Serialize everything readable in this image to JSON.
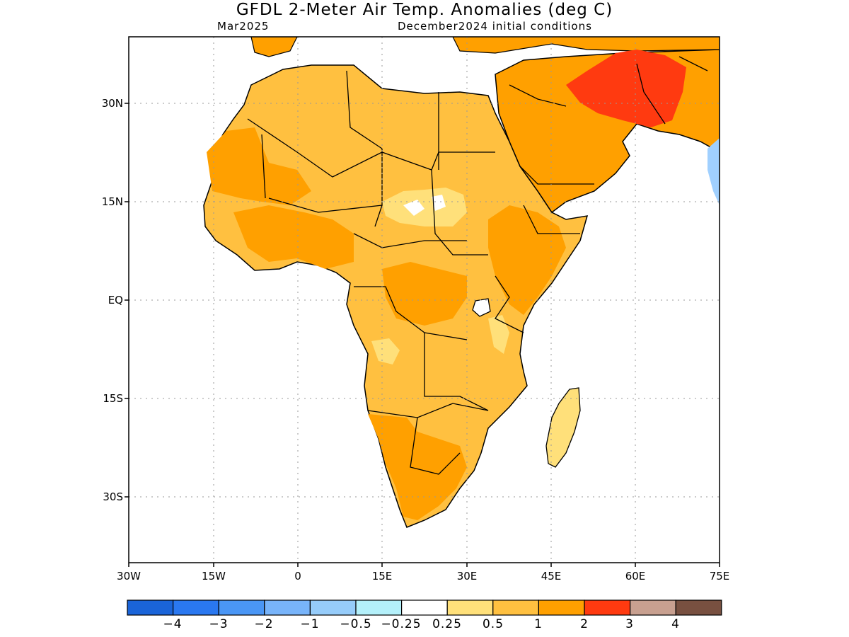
{
  "title": "GFDL 2-Meter Air Temp. Anomalies (deg C)",
  "subtitle_left": "Mar2025",
  "subtitle_right": "December2024 initial conditions",
  "map": {
    "region_lon": [
      "30W",
      "75E"
    ],
    "region_lat": [
      "40S",
      "40N"
    ],
    "lat_labels": [
      "30N",
      "15N",
      "EQ",
      "15S",
      "30S"
    ],
    "lon_labels": [
      "30W",
      "15W",
      "0",
      "15E",
      "30E",
      "45E",
      "60E",
      "75E"
    ],
    "grid": "dotted",
    "colors": {
      "anom_0_25_0_5": "#FFE07A",
      "anom_0_5_1": "#FFC040",
      "anom_1_2": "#FFA000",
      "anom_2_3": "#FF3A10",
      "anom_neg": "#A0D0FF"
    }
  },
  "legend": {
    "colors": [
      "#1A64D8",
      "#2A78F0",
      "#4A96F5",
      "#78B4FA",
      "#96CCFA",
      "#B4F0FA",
      "#FFFFFF",
      "#FFE07A",
      "#FFC040",
      "#FFA000",
      "#FF3A10",
      "#C8A090",
      "#785040"
    ],
    "labels": [
      "−4",
      "−3",
      "−2",
      "−1",
      "−0.5",
      "−0.25",
      "0.25",
      "0.5",
      "1",
      "2",
      "3",
      "4"
    ]
  }
}
